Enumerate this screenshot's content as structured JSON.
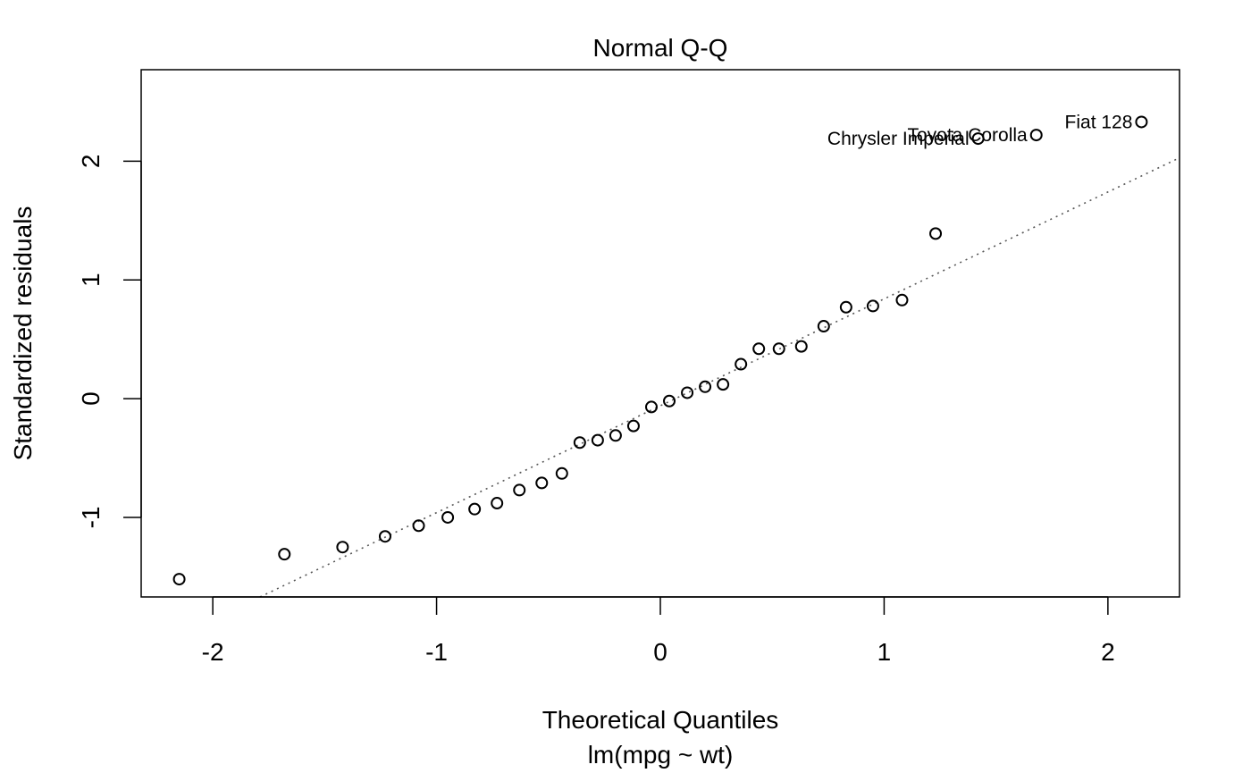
{
  "chart_data": {
    "type": "scatter",
    "title": "Normal Q-Q",
    "xlabel": "Theoretical Quantiles",
    "subtitle": "lm(mpg ~ wt)",
    "ylabel": "Standardized residuals",
    "xlim": [
      -2.32,
      2.32
    ],
    "ylim": [
      -1.67,
      2.77
    ],
    "grid": false,
    "xticks": [
      -2,
      -1,
      0,
      1,
      2
    ],
    "yticks": [
      -1,
      0,
      1,
      2
    ],
    "reference_line": {
      "style": "dotted",
      "slope": 0.9,
      "intercept": -0.06
    },
    "points": [
      {
        "x": -2.15,
        "y": -1.52
      },
      {
        "x": -1.68,
        "y": -1.31
      },
      {
        "x": -1.42,
        "y": -1.25
      },
      {
        "x": -1.23,
        "y": -1.16
      },
      {
        "x": -1.08,
        "y": -1.07
      },
      {
        "x": -0.95,
        "y": -1.0
      },
      {
        "x": -0.83,
        "y": -0.93
      },
      {
        "x": -0.73,
        "y": -0.88
      },
      {
        "x": -0.63,
        "y": -0.77
      },
      {
        "x": -0.53,
        "y": -0.71
      },
      {
        "x": -0.44,
        "y": -0.63
      },
      {
        "x": -0.36,
        "y": -0.37
      },
      {
        "x": -0.28,
        "y": -0.35
      },
      {
        "x": -0.2,
        "y": -0.31
      },
      {
        "x": -0.12,
        "y": -0.23
      },
      {
        "x": -0.04,
        "y": -0.07
      },
      {
        "x": 0.04,
        "y": -0.02
      },
      {
        "x": 0.12,
        "y": 0.05
      },
      {
        "x": 0.2,
        "y": 0.1
      },
      {
        "x": 0.28,
        "y": 0.12
      },
      {
        "x": 0.36,
        "y": 0.29
      },
      {
        "x": 0.44,
        "y": 0.42
      },
      {
        "x": 0.53,
        "y": 0.42
      },
      {
        "x": 0.63,
        "y": 0.44
      },
      {
        "x": 0.73,
        "y": 0.61
      },
      {
        "x": 0.83,
        "y": 0.77
      },
      {
        "x": 0.95,
        "y": 0.78
      },
      {
        "x": 1.08,
        "y": 0.83
      },
      {
        "x": 1.23,
        "y": 1.39
      },
      {
        "x": 1.42,
        "y": 2.19,
        "label": "Chrysler Imperial"
      },
      {
        "x": 1.68,
        "y": 2.22,
        "label": "Toyota Corolla"
      },
      {
        "x": 2.15,
        "y": 2.33,
        "label": "Fiat 128"
      }
    ]
  }
}
